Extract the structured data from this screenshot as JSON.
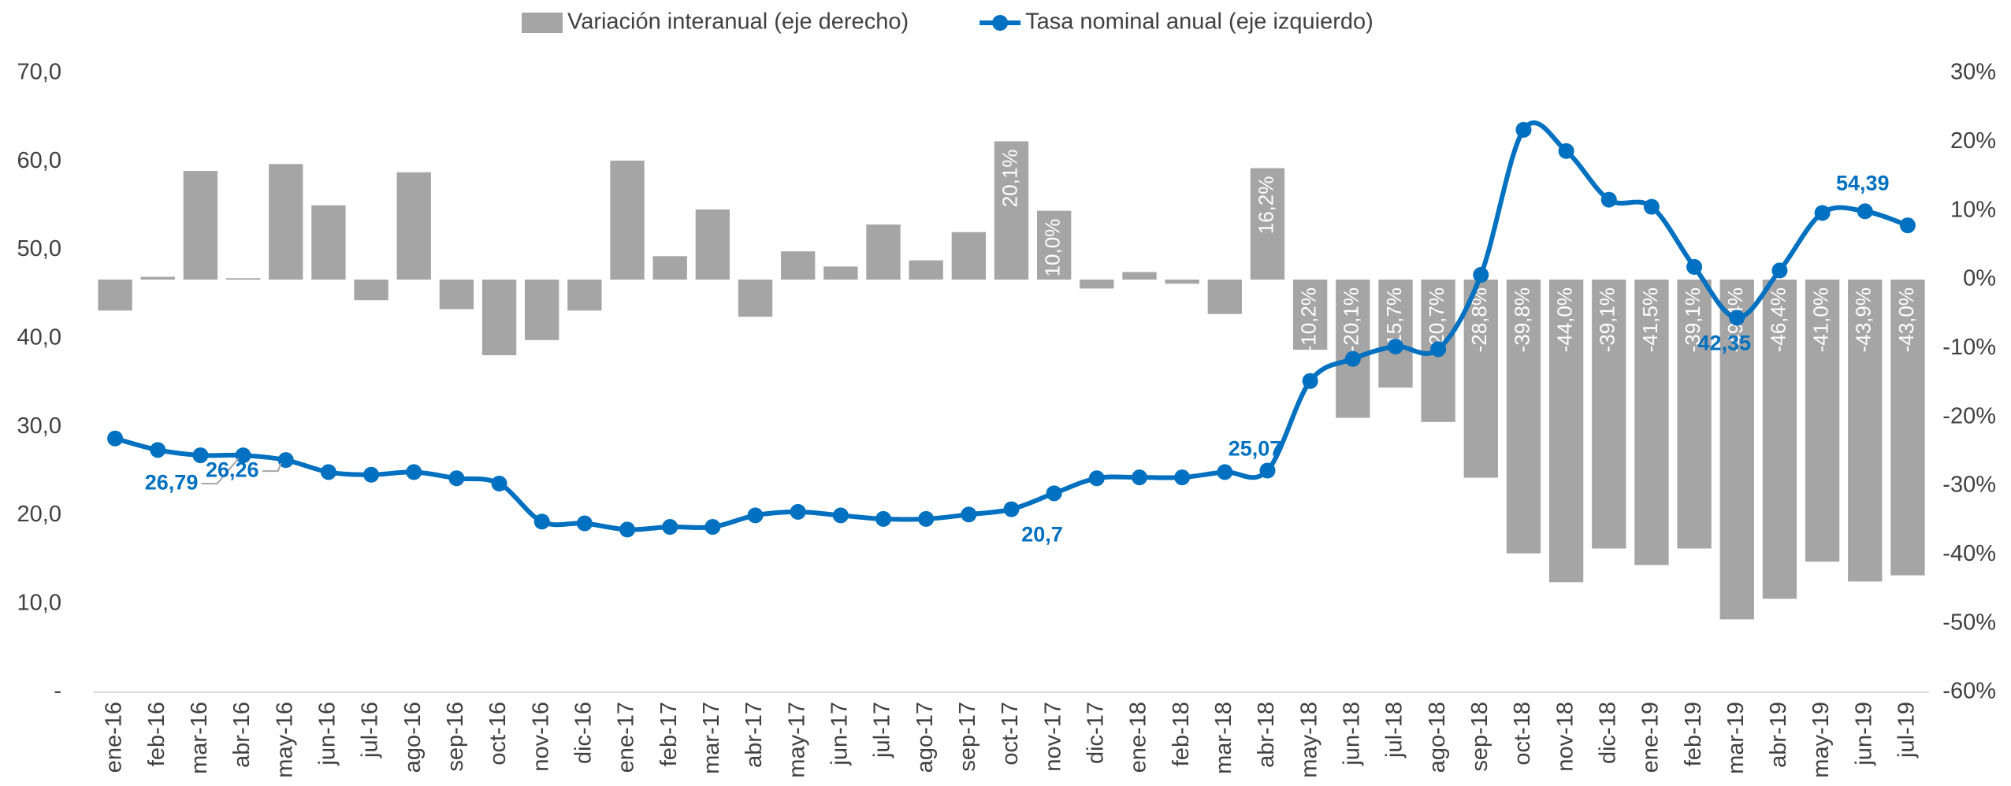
{
  "chart_data": {
    "type": "bar_line",
    "categories": [
      "ene-16",
      "feb-16",
      "mar-16",
      "abr-16",
      "may-16",
      "jun-16",
      "jul-16",
      "ago-16",
      "sep-16",
      "oct-16",
      "nov-16",
      "dic-16",
      "ene-17",
      "feb-17",
      "mar-17",
      "abr-17",
      "may-17",
      "jun-17",
      "jul-17",
      "ago-17",
      "sep-17",
      "oct-17",
      "nov-17",
      "dic-17",
      "ene-18",
      "feb-18",
      "mar-18",
      "abr-18",
      "may-18",
      "jun-18",
      "jul-18",
      "ago-18",
      "sep-18",
      "oct-18",
      "nov-18",
      "dic-18",
      "ene-19",
      "feb-19",
      "mar-19",
      "abr-19",
      "may-19",
      "jun-19",
      "jul-19"
    ],
    "series": [
      {
        "name": "Variación interanual (eje derecho)",
        "type": "bar",
        "axis": "y2",
        "color": "#a5a5a5",
        "values": [
          -4.5,
          0.4,
          15.8,
          0.2,
          16.8,
          10.8,
          -3.0,
          15.6,
          -4.3,
          -11.0,
          -8.8,
          -4.5,
          17.3,
          3.4,
          10.2,
          -5.4,
          4.1,
          1.9,
          8.0,
          2.8,
          6.9,
          20.1,
          10.0,
          -1.3,
          1.1,
          -0.6,
          -5.0,
          16.2,
          -10.2,
          -20.1,
          -15.7,
          -20.7,
          -28.8,
          -39.8,
          -44.0,
          -39.1,
          -41.5,
          -39.1,
          -49.4,
          -46.4,
          -41.0,
          -43.9,
          -43.0
        ],
        "value_labels": [
          null,
          null,
          null,
          null,
          null,
          null,
          null,
          null,
          null,
          null,
          null,
          null,
          null,
          null,
          null,
          null,
          null,
          null,
          null,
          null,
          null,
          "20,1%",
          "10,0%",
          null,
          null,
          null,
          null,
          "16,2%",
          "-10,2%",
          "-20,1%",
          "-15,7%",
          "-20,7%",
          "-28,8%",
          "-39,8%",
          "-44,0%",
          "-39,1%",
          "-41,5%",
          "-39,1%",
          "-49,4%",
          "-46,4%",
          "-41,0%",
          "-43,9%",
          "-43,0%"
        ]
      },
      {
        "name": "Tasa nominal anual (eje izquierdo)",
        "type": "line",
        "axis": "y",
        "color": "#0070c0",
        "values": [
          28.7,
          27.4,
          26.8,
          26.79,
          26.26,
          24.9,
          24.6,
          24.9,
          24.2,
          23.6,
          19.3,
          19.1,
          18.4,
          18.7,
          18.7,
          20.0,
          20.4,
          20.0,
          19.6,
          19.6,
          20.1,
          20.7,
          22.5,
          24.2,
          24.3,
          24.3,
          24.9,
          25.07,
          35.2,
          37.7,
          39.1,
          38.8,
          47.2,
          63.6,
          61.2,
          55.7,
          54.9,
          48.1,
          42.35,
          47.7,
          54.2,
          54.39,
          52.8
        ],
        "value_labels": [
          null,
          null,
          null,
          "26,79",
          "26,26",
          null,
          null,
          null,
          null,
          null,
          null,
          null,
          null,
          null,
          null,
          null,
          null,
          null,
          null,
          null,
          null,
          "20,7",
          null,
          null,
          null,
          null,
          null,
          "25,07",
          null,
          null,
          null,
          null,
          null,
          null,
          null,
          null,
          null,
          null,
          "42,35",
          null,
          null,
          "54,39",
          null
        ]
      }
    ],
    "ylim": [
      0,
      70
    ],
    "yticks": [
      {
        "value": 0,
        "label": "-"
      },
      {
        "value": 10,
        "label": "10,0"
      },
      {
        "value": 20,
        "label": "20,0"
      },
      {
        "value": 30,
        "label": "30,0"
      },
      {
        "value": 40,
        "label": "40,0"
      },
      {
        "value": 50,
        "label": "50,0"
      },
      {
        "value": 60,
        "label": "60,0"
      },
      {
        "value": 70,
        "label": "70,0"
      }
    ],
    "y2lim": [
      -60,
      30
    ],
    "y2ticks": [
      {
        "value": -60,
        "label": "-60%"
      },
      {
        "value": -50,
        "label": "-50%"
      },
      {
        "value": -40,
        "label": "-40%"
      },
      {
        "value": -30,
        "label": "-30%"
      },
      {
        "value": -20,
        "label": "-20%"
      },
      {
        "value": -10,
        "label": "-10%"
      },
      {
        "value": 0,
        "label": "0%"
      },
      {
        "value": 10,
        "label": "10%"
      },
      {
        "value": 20,
        "label": "20%"
      },
      {
        "value": 30,
        "label": "30%"
      }
    ],
    "legend": "top",
    "grid": false
  }
}
